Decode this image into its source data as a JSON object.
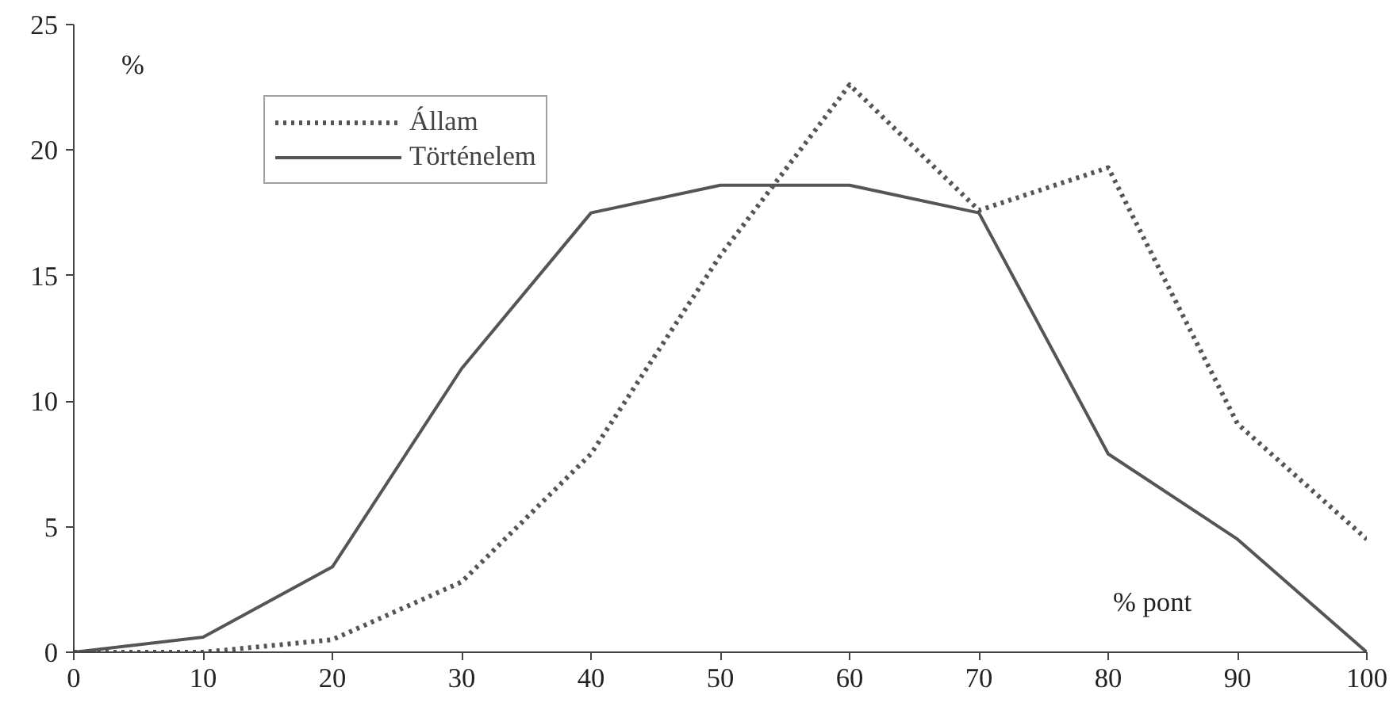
{
  "chart_data": {
    "type": "line",
    "xlabel": "% pont",
    "ylabel": "%",
    "x": [
      0,
      10,
      20,
      30,
      40,
      50,
      60,
      70,
      80,
      90,
      100
    ],
    "series": [
      {
        "name": "Állam",
        "color": "#555555",
        "line_style": "dotted",
        "values": [
          0,
          0,
          0.5,
          2.8,
          7.9,
          15.8,
          22.6,
          17.6,
          19.3,
          9.1,
          4.5
        ]
      },
      {
        "name": "Történelem",
        "color": "#555555",
        "line_style": "solid",
        "values": [
          0,
          0.6,
          3.4,
          11.3,
          17.5,
          18.6,
          18.6,
          17.5,
          7.9,
          4.5,
          0
        ]
      }
    ],
    "xlim": [
      0,
      100
    ],
    "ylim": [
      0,
      25
    ],
    "xticks": [
      0,
      10,
      20,
      30,
      40,
      50,
      60,
      70,
      80,
      90,
      100
    ],
    "yticks": [
      0,
      5,
      10,
      15,
      20,
      25
    ],
    "grid": false,
    "legend": "top left",
    "marker": "none"
  }
}
